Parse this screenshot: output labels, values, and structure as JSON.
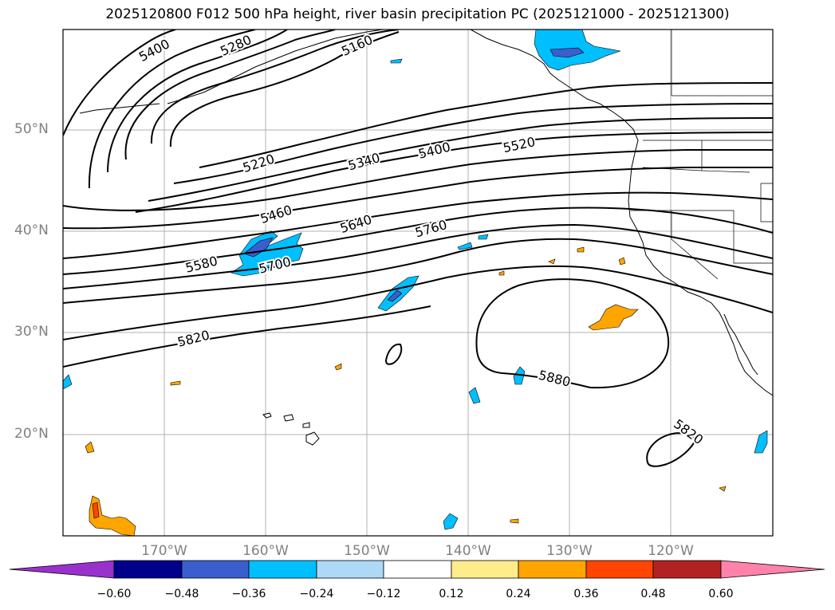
{
  "title": "2025120800 F012 500 hPa height, river basin precipitation PC (2025121000 - 2025121300)",
  "latitude_labels": [
    "50°N",
    "40°N",
    "30°N",
    "20°N"
  ],
  "longitude_labels": [
    "170°W",
    "160°W",
    "150°W",
    "140°W",
    "130°W",
    "120°W"
  ],
  "contour_labels": [
    "5400",
    "5280",
    "5160",
    "5220",
    "5340",
    "5400",
    "5520",
    "5460",
    "5640",
    "5760",
    "5580",
    "5700",
    "5820",
    "5880",
    "5820"
  ],
  "colorbar": {
    "tick_labels": [
      "−0.60",
      "−0.48",
      "−0.36",
      "−0.24",
      "−0.12",
      "0.12",
      "0.24",
      "0.36",
      "0.48",
      "0.60"
    ],
    "colors": [
      "#9932cc",
      "#00008b",
      "#3a5fcd",
      "#00bfff",
      "#add8f6",
      "#ffffff",
      "#ffec8b",
      "#ffa500",
      "#ff4500",
      "#b22222",
      "#ff82ab"
    ]
  },
  "colors": {
    "contour": "#000000",
    "coast": "#000000",
    "grid": "#b0b0b0",
    "tick_text": "#808080"
  }
}
